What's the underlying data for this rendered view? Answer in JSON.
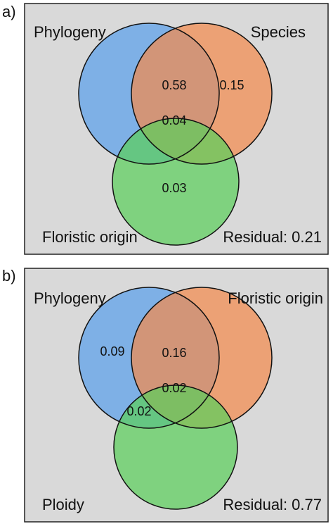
{
  "panels": [
    {
      "label": "a)",
      "sets": [
        {
          "name": "Phylogeny",
          "color": "#5aa0ea"
        },
        {
          "name": "Species",
          "color": "#f38a4e"
        },
        {
          "name": "Floristic origin",
          "color": "#5ccf5c"
        }
      ],
      "regions": [
        "0.58",
        "0.15",
        "0.04",
        "0.03"
      ],
      "residual": "Residual: 0.21"
    },
    {
      "label": "b)",
      "sets": [
        {
          "name": "Phylogeny",
          "color": "#5aa0ea"
        },
        {
          "name": "Floristic origin",
          "color": "#f38a4e"
        },
        {
          "name": "Ploidy",
          "color": "#5ccf5c"
        }
      ],
      "regions": [
        "0.09",
        "0.16",
        "0.02",
        "0.02"
      ],
      "residual": "Residual: 0.77"
    }
  ]
}
